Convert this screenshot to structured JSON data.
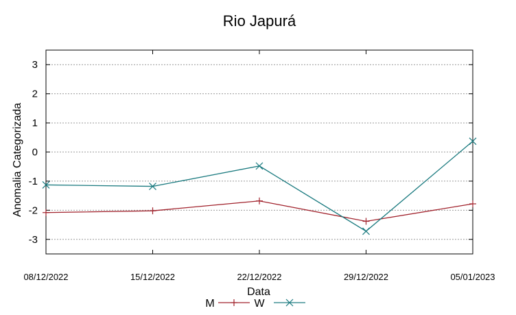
{
  "chart_data": {
    "type": "line",
    "title": "Rio Japurá",
    "xlabel": "Data",
    "ylabel": "Anomalia Categorizada",
    "categories": [
      "08/12/2022",
      "15/12/2022",
      "22/12/2022",
      "29/12/2022",
      "05/01/2023"
    ],
    "ylim": [
      -3.5,
      3.5
    ],
    "yticks": [
      3,
      2,
      1,
      0,
      -1,
      -2,
      -3
    ],
    "ytick_labels": [
      "3",
      "2",
      "1",
      "0",
      "-1",
      "-2",
      "-3"
    ],
    "grid": true,
    "legend_position": "bottom",
    "series": [
      {
        "name": "M",
        "color": "#a0202a",
        "marker": "plus",
        "values": [
          -2.08,
          -2.02,
          -1.68,
          -2.38,
          -1.78
        ]
      },
      {
        "name": "W",
        "color": "#1a7a7f",
        "marker": "cross",
        "values": [
          -1.13,
          -1.18,
          -0.48,
          -2.72,
          0.37
        ]
      }
    ]
  }
}
